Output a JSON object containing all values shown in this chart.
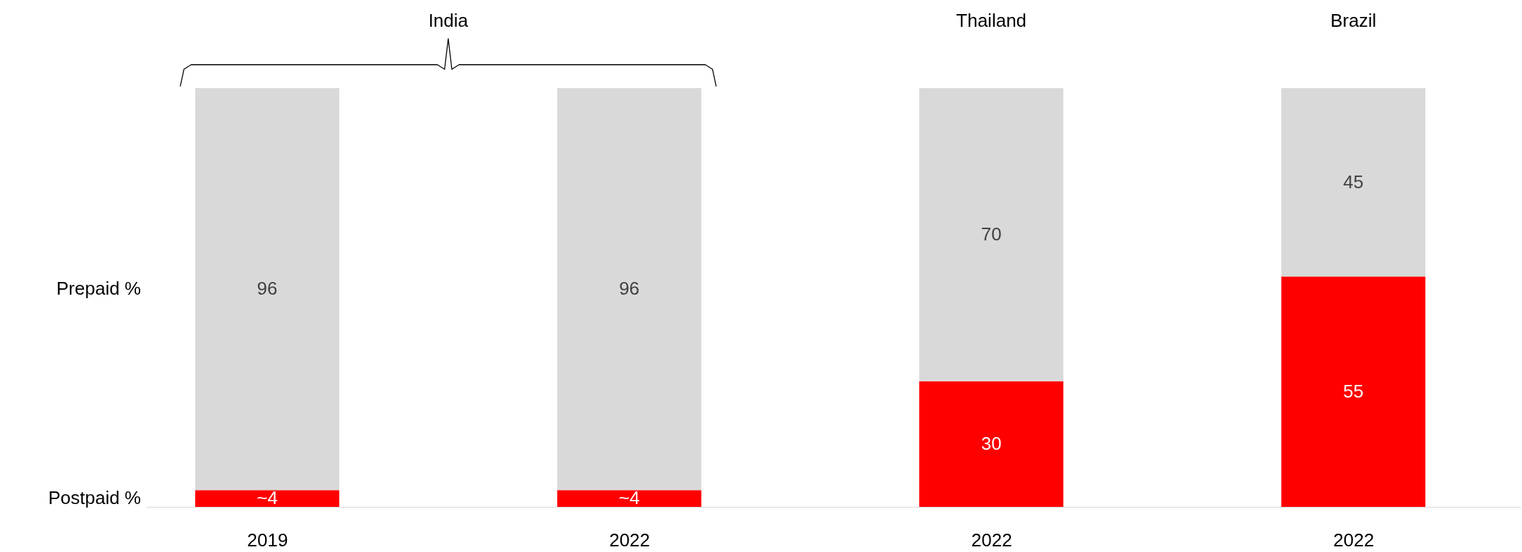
{
  "chart_data": {
    "type": "bar",
    "stacked": true,
    "tick_labels": "x",
    "categories": [
      "2019",
      "2022",
      "2022",
      "2022"
    ],
    "series": [
      {
        "name": "Postpaid %",
        "color": "#ff0000",
        "values": [
          4,
          4,
          30,
          55
        ],
        "value_labels": [
          "~4",
          "~4",
          "30",
          "55"
        ]
      },
      {
        "name": "Prepaid %",
        "color": "#d9d9d9",
        "values": [
          96,
          96,
          70,
          45
        ],
        "value_labels": [
          "96",
          "96",
          "70",
          "45"
        ]
      }
    ],
    "annotations": [
      "India",
      "Thailand",
      "Brazil"
    ]
  }
}
